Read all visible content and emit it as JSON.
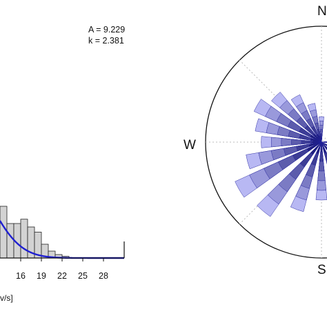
{
  "colors": {
    "background": "#ffffff",
    "histogram_fill": "#d3d3d3",
    "histogram_stroke": "#222222",
    "weibull_curve": "#1f1fd1",
    "axis": "#111111",
    "rose_dark": "#000066",
    "rose_light": "#c8c8ff"
  },
  "chart_data": [
    {
      "type": "bar",
      "title": "",
      "annotations": [
        "A = 9.229",
        "k = 2.381"
      ],
      "xlabel": "v/s]",
      "ylabel": "",
      "x_ticks": [
        16,
        19,
        22,
        25,
        28
      ],
      "xlim": [
        13,
        31
      ],
      "bins": [
        {
          "x_start": 13,
          "x_end": 14,
          "value": 0.06
        },
        {
          "x_start": 14,
          "x_end": 15,
          "value": 0.04
        },
        {
          "x_start": 15,
          "x_end": 16,
          "value": 0.04
        },
        {
          "x_start": 16,
          "x_end": 17,
          "value": 0.045
        },
        {
          "x_start": 17,
          "x_end": 18,
          "value": 0.036
        },
        {
          "x_start": 18,
          "x_end": 19,
          "value": 0.03
        },
        {
          "x_start": 19,
          "x_end": 20,
          "value": 0.016
        },
        {
          "x_start": 20,
          "x_end": 21,
          "value": 0.008
        },
        {
          "x_start": 21,
          "x_end": 22,
          "value": 0.004
        },
        {
          "x_start": 22,
          "x_end": 23,
          "value": 0.002
        }
      ],
      "weibull_curve": {
        "A": 9.229,
        "k": 2.381
      }
    },
    {
      "type": "rose",
      "title": "",
      "direction_labels": [
        "N",
        "W",
        "S"
      ],
      "petals": [
        {
          "direction_deg": 90,
          "length": 0.15
        },
        {
          "direction_deg": 120,
          "length": 0.3
        },
        {
          "direction_deg": 140,
          "length": 0.45
        },
        {
          "direction_deg": 160,
          "length": 0.6
        },
        {
          "direction_deg": 180,
          "length": 0.5
        },
        {
          "direction_deg": 200,
          "length": 0.62
        },
        {
          "direction_deg": 220,
          "length": 0.78
        },
        {
          "direction_deg": 240,
          "length": 0.82
        },
        {
          "direction_deg": 255,
          "length": 0.66
        },
        {
          "direction_deg": 270,
          "length": 0.52
        },
        {
          "direction_deg": 285,
          "length": 0.58
        },
        {
          "direction_deg": 300,
          "length": 0.64
        },
        {
          "direction_deg": 315,
          "length": 0.56
        },
        {
          "direction_deg": 330,
          "length": 0.45
        },
        {
          "direction_deg": 345,
          "length": 0.34
        },
        {
          "direction_deg": 0,
          "length": 0.22
        }
      ]
    }
  ]
}
